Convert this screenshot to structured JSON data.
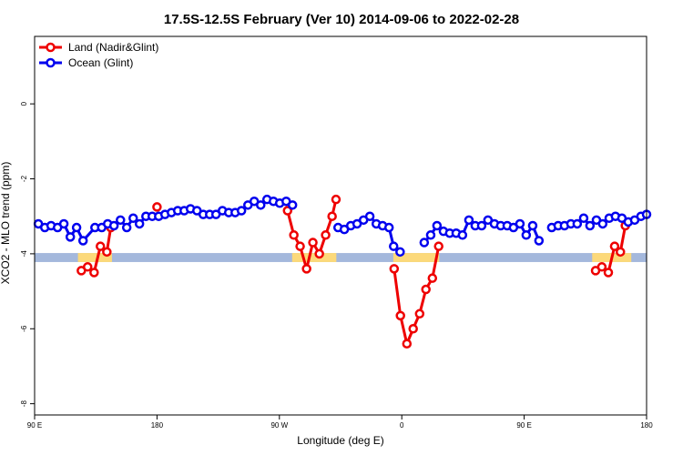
{
  "chart_data": {
    "type": "line",
    "title": "17.5S-12.5S February (Ver 10)   2014-09-06 to 2022-02-28",
    "xlabel": "Longitude (deg E)",
    "ylabel": "XCO2 - MLO trend (ppm)",
    "xlim": [
      90,
      450
    ],
    "ylim": [
      -8.3,
      1.8
    ],
    "x_ticks": [
      {
        "value": 90,
        "label": "90 E"
      },
      {
        "value": 162,
        "label": "180"
      },
      {
        "value": 234,
        "label": "90 W"
      },
      {
        "value": 306,
        "label": "0"
      },
      {
        "value": 378,
        "label": "90 E"
      },
      {
        "value": 450,
        "label": "180"
      }
    ],
    "y_ticks": [
      {
        "value": 0,
        "label": "0"
      },
      {
        "value": -2,
        "label": "-2"
      },
      {
        "value": -4,
        "label": "-4"
      },
      {
        "value": -6,
        "label": "-6"
      },
      {
        "value": -8,
        "label": "-8"
      }
    ],
    "legend": {
      "position": "top-left"
    },
    "series": [
      {
        "name": "Land (Nadir&Glint)",
        "color": "#ee0000",
        "segments": [
          [
            [
              117.5,
              -4.45
            ],
            [
              121.2,
              -4.35
            ],
            [
              125,
              -4.5
            ],
            [
              128.7,
              -3.8
            ],
            [
              132.5,
              -3.95
            ],
            [
              134.8,
              -3.3
            ]
          ],
          [
            [
              162,
              -2.75
            ]
          ],
          [
            [
              238.8,
              -2.85
            ],
            [
              242.5,
              -3.5
            ],
            [
              246.2,
              -3.8
            ],
            [
              250,
              -4.4
            ],
            [
              253.7,
              -3.7
            ],
            [
              257.5,
              -4.0
            ],
            [
              261.2,
              -3.5
            ],
            [
              265,
              -3.0
            ],
            [
              267.3,
              -2.55
            ]
          ],
          [
            [
              301.5,
              -4.4
            ],
            [
              305.2,
              -5.65
            ],
            [
              309,
              -6.4
            ],
            [
              312.7,
              -6.0
            ],
            [
              316.5,
              -5.6
            ],
            [
              320.2,
              -4.95
            ],
            [
              324,
              -4.65
            ],
            [
              327.7,
              -3.8
            ]
          ],
          [
            [
              420,
              -4.45
            ],
            [
              423.7,
              -4.35
            ],
            [
              427.5,
              -4.5
            ],
            [
              431.2,
              -3.8
            ],
            [
              434.6,
              -3.95
            ],
            [
              437.5,
              -3.25
            ]
          ]
        ]
      },
      {
        "name": "Ocean (Glint)",
        "color": "#0000ee",
        "segments": [
          [
            [
              92.2,
              -3.2
            ],
            [
              96,
              -3.3
            ],
            [
              99.7,
              -3.25
            ],
            [
              103.5,
              -3.3
            ],
            [
              107.2,
              -3.2
            ],
            [
              111,
              -3.55
            ],
            [
              114.7,
              -3.3
            ],
            [
              118.5,
              -3.65
            ],
            [
              125.5,
              -3.3
            ],
            [
              129.5,
              -3.3
            ],
            [
              133,
              -3.2
            ],
            [
              136.7,
              -3.25
            ],
            [
              140.5,
              -3.1
            ],
            [
              144.2,
              -3.3
            ],
            [
              148,
              -3.05
            ],
            [
              151.7,
              -3.2
            ],
            [
              155.5,
              -3.0
            ],
            [
              159.2,
              -3.0
            ],
            [
              163,
              -3.0
            ],
            [
              166.7,
              -2.95
            ],
            [
              170.5,
              -2.9
            ],
            [
              174.2,
              -2.85
            ],
            [
              178,
              -2.85
            ],
            [
              181.7,
              -2.8
            ],
            [
              185.5,
              -2.85
            ],
            [
              189.2,
              -2.95
            ],
            [
              193,
              -2.95
            ],
            [
              196.7,
              -2.95
            ],
            [
              200.5,
              -2.85
            ],
            [
              204.2,
              -2.9
            ],
            [
              208,
              -2.9
            ],
            [
              211.7,
              -2.85
            ],
            [
              215.5,
              -2.7
            ],
            [
              219.2,
              -2.6
            ],
            [
              223,
              -2.7
            ],
            [
              226.7,
              -2.55
            ],
            [
              230.5,
              -2.6
            ],
            [
              234.2,
              -2.65
            ],
            [
              238,
              -2.6
            ],
            [
              241.7,
              -2.7
            ]
          ],
          [
            [
              268.5,
              -3.3
            ],
            [
              272.2,
              -3.35
            ],
            [
              276,
              -3.25
            ],
            [
              279.7,
              -3.2
            ],
            [
              283.5,
              -3.1
            ],
            [
              287.2,
              -3.0
            ],
            [
              291,
              -3.2
            ],
            [
              294.7,
              -3.25
            ],
            [
              298.5,
              -3.3
            ],
            [
              301.2,
              -3.8
            ],
            [
              305,
              -3.95
            ]
          ],
          [
            [
              319.2,
              -3.7
            ],
            [
              323,
              -3.5
            ],
            [
              326.7,
              -3.25
            ],
            [
              330.5,
              -3.4
            ],
            [
              334.2,
              -3.45
            ],
            [
              338,
              -3.45
            ],
            [
              341.7,
              -3.5
            ],
            [
              345.5,
              -3.1
            ],
            [
              349.2,
              -3.25
            ],
            [
              353,
              -3.25
            ],
            [
              356.7,
              -3.1
            ],
            [
              360.5,
              -3.2
            ],
            [
              364.2,
              -3.25
            ],
            [
              368,
              -3.25
            ],
            [
              371.7,
              -3.3
            ],
            [
              375.5,
              -3.2
            ],
            [
              379.2,
              -3.5
            ],
            [
              383,
              -3.25
            ],
            [
              386.7,
              -3.65
            ]
          ],
          [
            [
              394.2,
              -3.3
            ],
            [
              398,
              -3.25
            ],
            [
              401.7,
              -3.25
            ],
            [
              405.5,
              -3.2
            ],
            [
              409.2,
              -3.2
            ],
            [
              413,
              -3.05
            ],
            [
              416.7,
              -3.25
            ],
            [
              420.5,
              -3.1
            ],
            [
              424.2,
              -3.2
            ],
            [
              428,
              -3.05
            ],
            [
              431.7,
              -3.0
            ],
            [
              435.5,
              -3.05
            ],
            [
              439.2,
              -3.15
            ],
            [
              443,
              -3.1
            ],
            [
              446.7,
              -3.0
            ],
            [
              450,
              -2.95
            ]
          ]
        ]
      }
    ],
    "surface_strip": {
      "y_range": [
        -4.22,
        -3.98
      ],
      "ocean_color": "#a4b8dc",
      "land_color": "#fcd97a",
      "land_intervals": [
        [
          115.5,
          135.5
        ],
        [
          241.5,
          267.5
        ],
        [
          301,
          328
        ],
        [
          418,
          441
        ]
      ]
    }
  }
}
